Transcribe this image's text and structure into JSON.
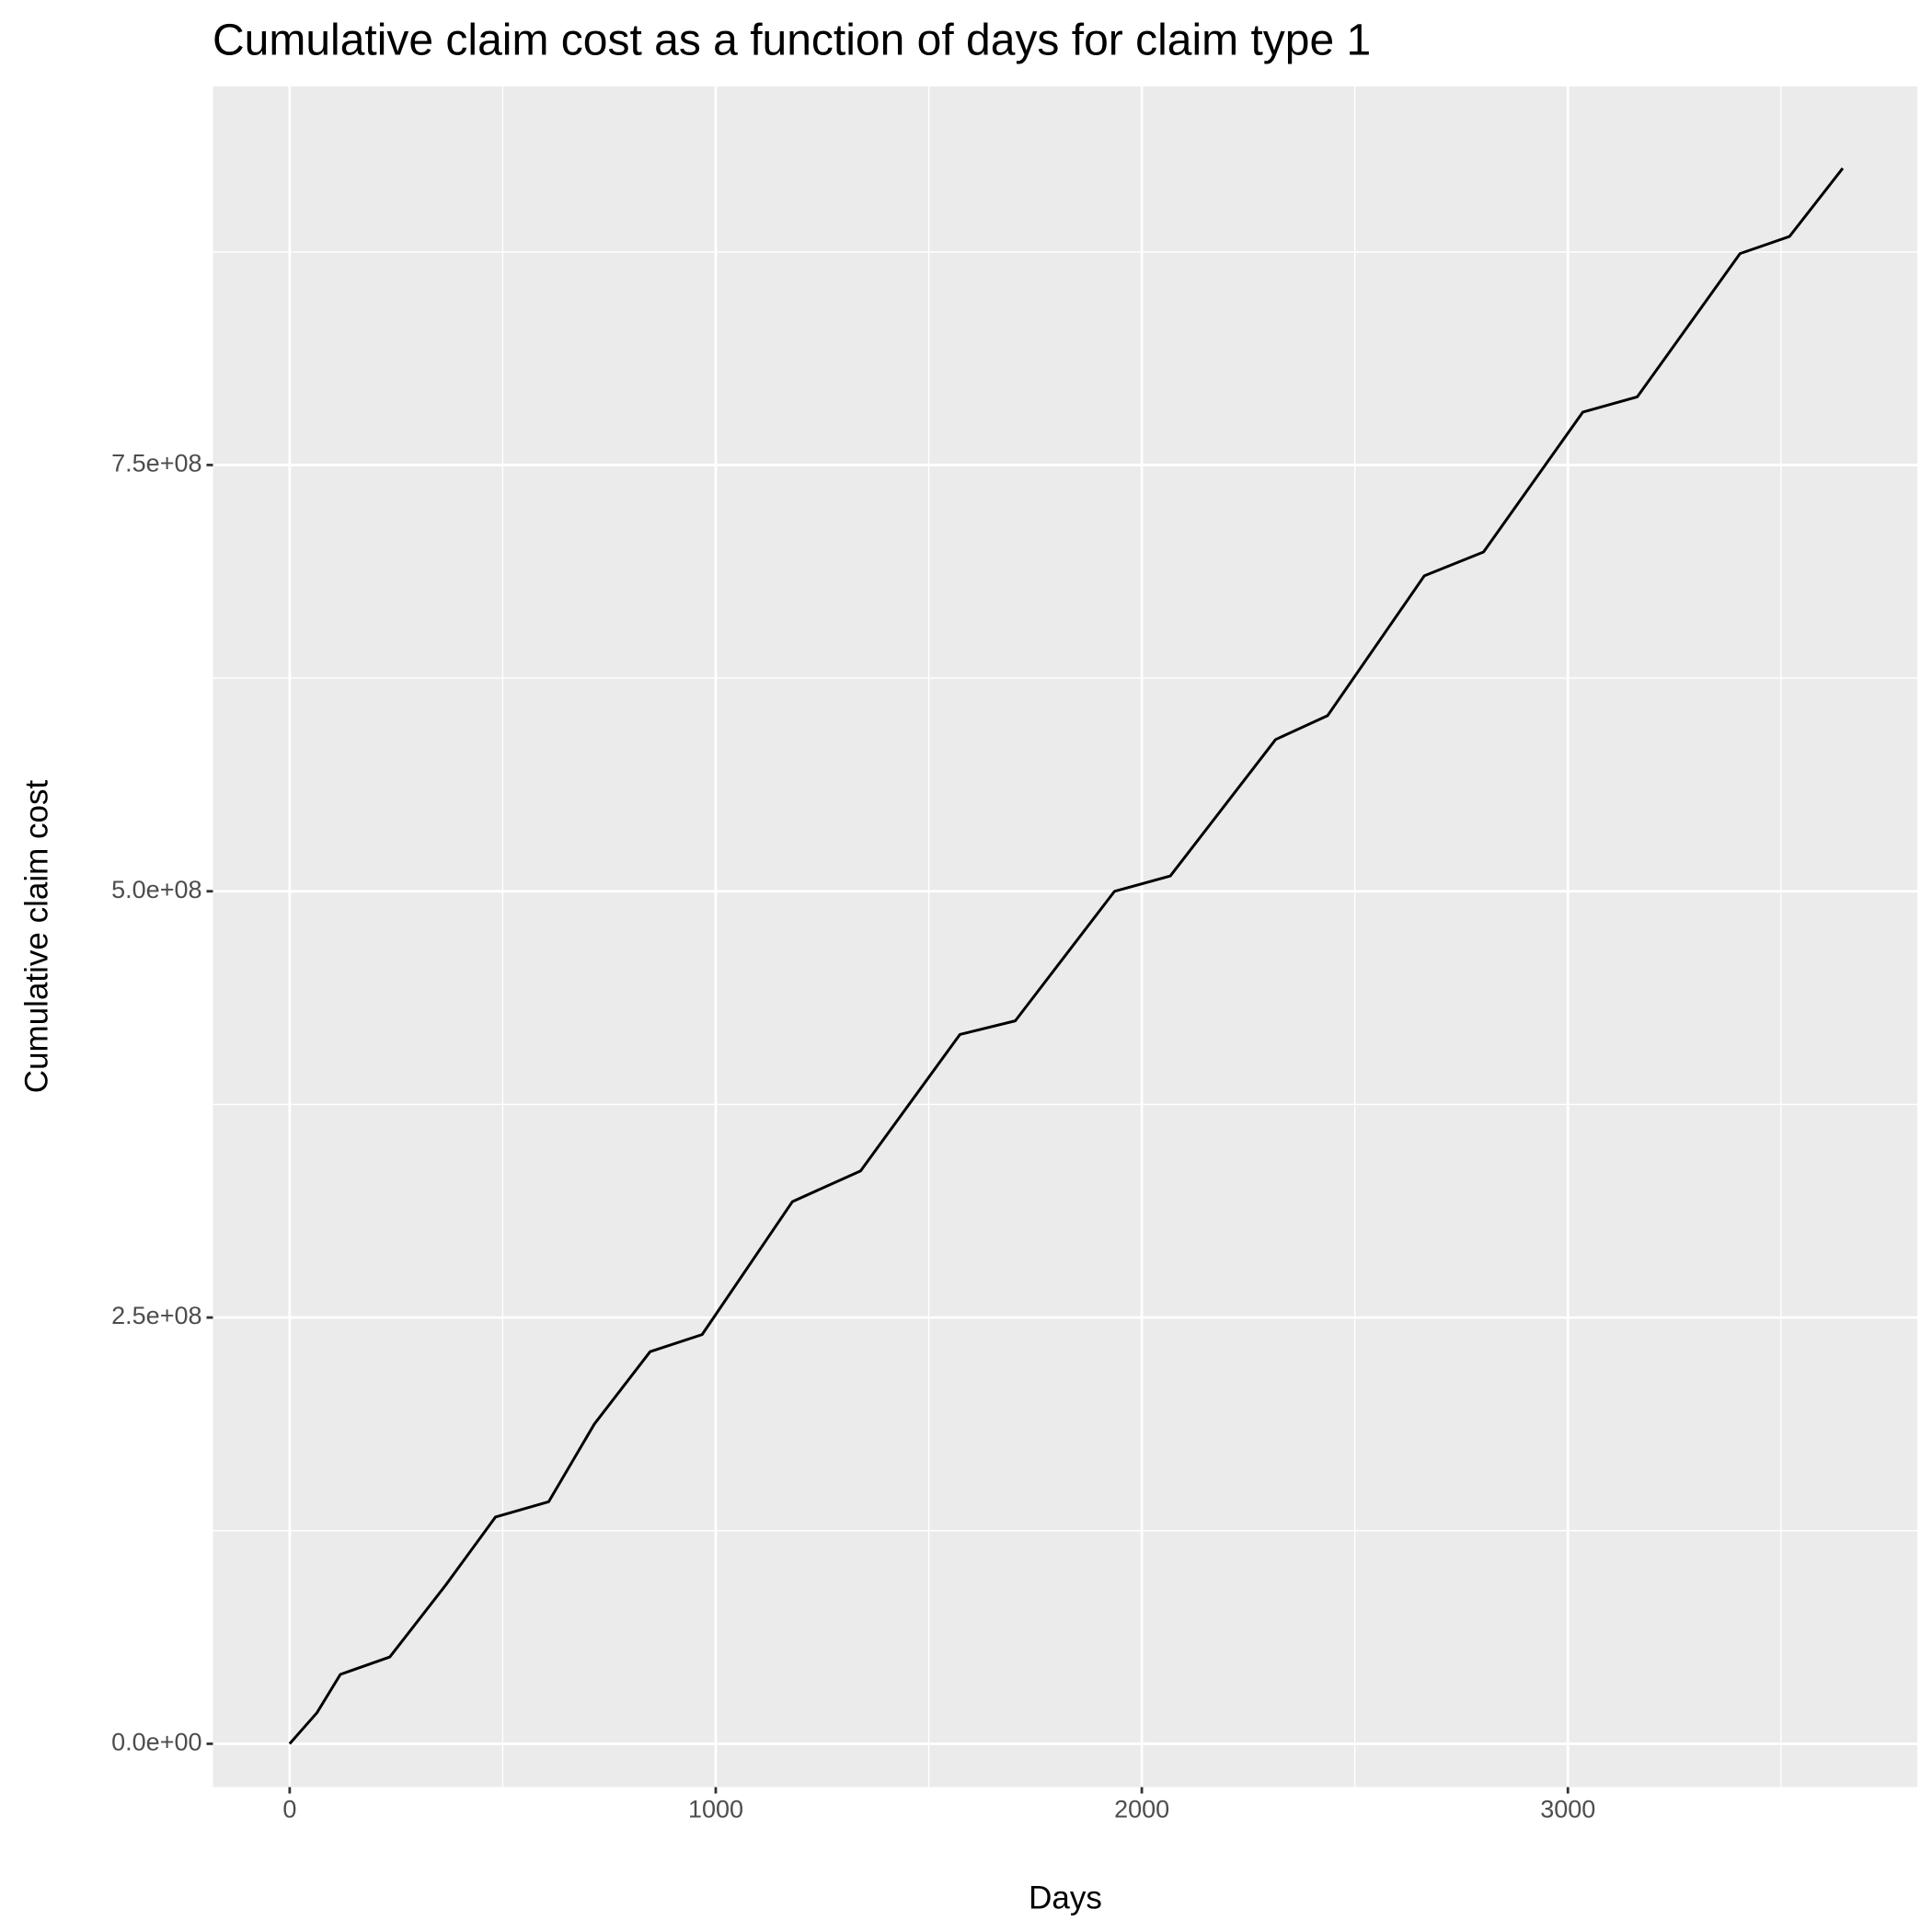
{
  "chart_data": {
    "type": "line",
    "title": "Cumulative claim cost as a function of days for claim type 1",
    "x_label": "Days",
    "y_label": "Cumulative claim cost",
    "x": [
      0,
      64,
      119,
      235,
      366,
      483,
      608,
      715,
      846,
      968,
      1180,
      1340,
      1573,
      1703,
      1936,
      2067,
      2314,
      2436,
      2663,
      2802,
      3035,
      3163,
      3404,
      3520,
      3645
    ],
    "series": [
      {
        "name": "Cumulative claim cost",
        "color": "#000000",
        "values": [
          0,
          18200000,
          40700000,
          50900000,
          93000000,
          133000000,
          142000000,
          187500000,
          230000000,
          240000000,
          318000000,
          336000000,
          416000000,
          424000000,
          500000000,
          509000000,
          589000000,
          603000000,
          685000000,
          699000000,
          781000000,
          790000000,
          874000000,
          884000000,
          924000000
        ]
      }
    ],
    "xlim": [
      -180,
      3820
    ],
    "ylim": [
      -25400000,
      972000000
    ],
    "xticks": [
      0,
      1000,
      2000,
      3000
    ],
    "x_minor_ticks": [
      500,
      1500,
      2500,
      3500
    ],
    "yticks": [
      {
        "value": 0,
        "label": "0.0e+00"
      },
      {
        "value": 250000000,
        "label": "2.5e+08"
      },
      {
        "value": 500000000,
        "label": "5.0e+08"
      },
      {
        "value": 750000000,
        "label": "7.5e+08"
      }
    ],
    "y_minor_ticks": [
      125000000,
      375000000,
      625000000,
      875000000
    ],
    "grid": true
  }
}
